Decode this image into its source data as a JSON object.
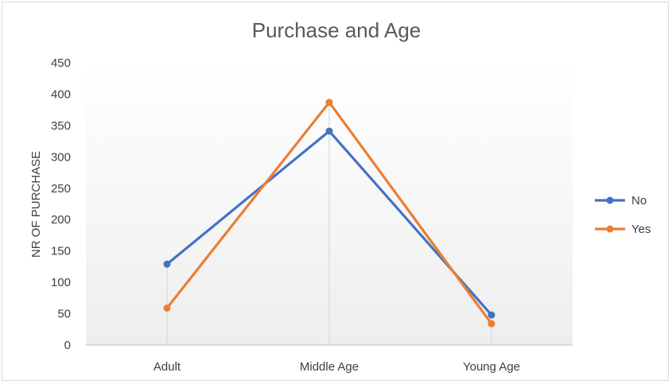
{
  "chart_data": {
    "type": "line",
    "title": "Purchase and Age",
    "xlabel": "",
    "ylabel": "NR OF PURCHASE",
    "categories": [
      "Adult",
      "Middle Age",
      "Young Age"
    ],
    "ylim": [
      0,
      450
    ],
    "yticks": [
      0,
      50,
      100,
      150,
      200,
      250,
      300,
      350,
      400,
      450
    ],
    "series": [
      {
        "name": "No",
        "color": "#4472C4",
        "values": [
          129,
          341,
          48
        ]
      },
      {
        "name": "Yes",
        "color": "#ED7D31",
        "values": [
          59,
          387,
          34
        ]
      }
    ],
    "legend": "right",
    "grid": false,
    "drop_lines": true
  }
}
